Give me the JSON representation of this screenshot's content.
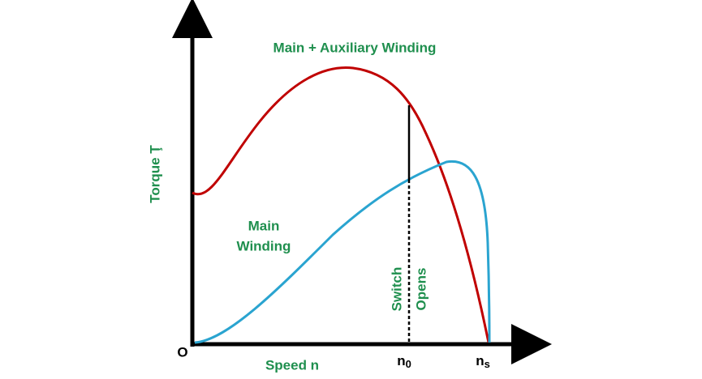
{
  "title": "Main + Auxiliary Winding",
  "main_winding": [
    "Main",
    "Winding"
  ],
  "y_axis_label": "Torque Ţ",
  "x_axis_label": "Speed n",
  "origin": "O",
  "n0": {
    "symbol": "n",
    "subscript": "0"
  },
  "ns": {
    "symbol": "n",
    "subscript": "s"
  },
  "switch_label": [
    "Switch",
    "Opens"
  ]
}
